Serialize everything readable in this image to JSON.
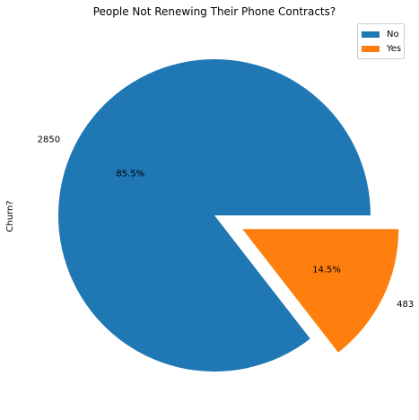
{
  "chart_data": {
    "type": "pie",
    "title": "People Not Renewing Their Phone Contracts?",
    "ylabel": "Churn?",
    "categories": [
      "No",
      "Yes"
    ],
    "values": [
      2850,
      483
    ],
    "percent_labels": [
      "85.5%",
      "14.5%"
    ],
    "value_labels": [
      "2850",
      "483"
    ],
    "colors": [
      "#1f77b4",
      "#ff7f0e"
    ],
    "exploded": [
      false,
      true
    ],
    "legend_position": "top-right"
  }
}
